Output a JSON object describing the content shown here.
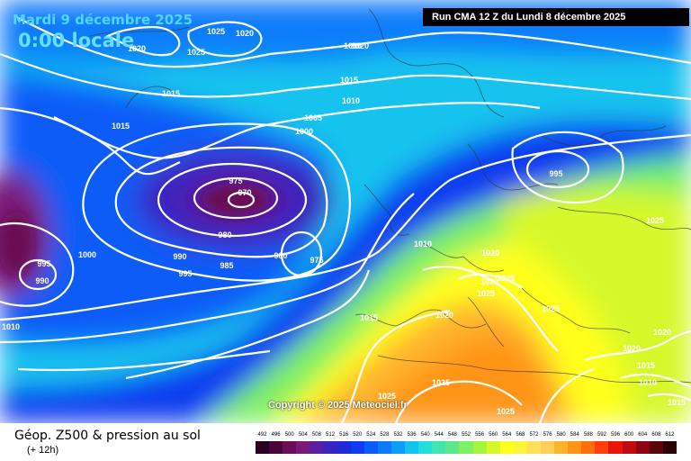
{
  "header": {
    "date": "Mardi 9 décembre 2025",
    "local_time": "0:00 locale",
    "run": "Run CMA 12 Z du Lundi 8 décembre 2025"
  },
  "copyright": "Copyright © 2025 Meteociel.fr",
  "legend": {
    "title": "Géop. Z500 & pression au sol",
    "subtitle": "(+ 12h)",
    "scale_values": [
      "492",
      "496",
      "500",
      "504",
      "508",
      "512",
      "516",
      "520",
      "524",
      "528",
      "532",
      "536",
      "540",
      "544",
      "548",
      "552",
      "556",
      "560",
      "564",
      "568",
      "572",
      "576",
      "580",
      "584",
      "588",
      "592",
      "596",
      "600",
      "604",
      "608",
      "612"
    ],
    "scale_colors": [
      "#2a0020",
      "#4a0638",
      "#6a0f55",
      "#7a1a78",
      "#5a1fa0",
      "#3a24c0",
      "#1f2ad8",
      "#0f3cf0",
      "#0a5cf8",
      "#0a7cfa",
      "#0a9ff5",
      "#13c3ee",
      "#22ddd8",
      "#3fe6b2",
      "#5ee68a",
      "#7ef063",
      "#a6f53c",
      "#d6f82a",
      "#ffff1f",
      "#fff23c",
      "#fde25a",
      "#ffcf5a",
      "#ffb32d",
      "#ff9415",
      "#ff6e0a",
      "#ff3e0a",
      "#e8140a",
      "#c00a12",
      "#8c0612",
      "#5a040c",
      "#2c0206"
    ]
  },
  "isobar_labels": [
    {
      "text": "1025"
    },
    {
      "text": "1020"
    },
    {
      "text": "1020"
    },
    {
      "text": "1025"
    },
    {
      "text": "1020"
    },
    {
      "text": "1015"
    },
    {
      "text": "1015"
    },
    {
      "text": "1010"
    },
    {
      "text": "1015"
    },
    {
      "text": "1005"
    },
    {
      "text": "1000"
    },
    {
      "text": "975"
    },
    {
      "text": "970"
    },
    {
      "text": "980"
    },
    {
      "text": "985"
    },
    {
      "text": "990"
    },
    {
      "text": "995"
    },
    {
      "text": "980"
    },
    {
      "text": "975"
    },
    {
      "text": "1000"
    },
    {
      "text": "995"
    },
    {
      "text": "990"
    },
    {
      "text": "1010"
    },
    {
      "text": "1010"
    },
    {
      "text": "1020"
    },
    {
      "text": "1020"
    },
    {
      "text": "1025"
    },
    {
      "text": "1025"
    },
    {
      "text": "1015"
    },
    {
      "text": "1020"
    },
    {
      "text": "1025"
    },
    {
      "text": "995"
    },
    {
      "text": "1025"
    },
    {
      "text": "1020"
    },
    {
      "text": "1020"
    },
    {
      "text": "1015"
    },
    {
      "text": "1010"
    },
    {
      "text": "1015"
    },
    {
      "text": "1025"
    },
    {
      "text": "1025"
    },
    {
      "text": "1025"
    },
    {
      "text": "1010"
    }
  ]
}
